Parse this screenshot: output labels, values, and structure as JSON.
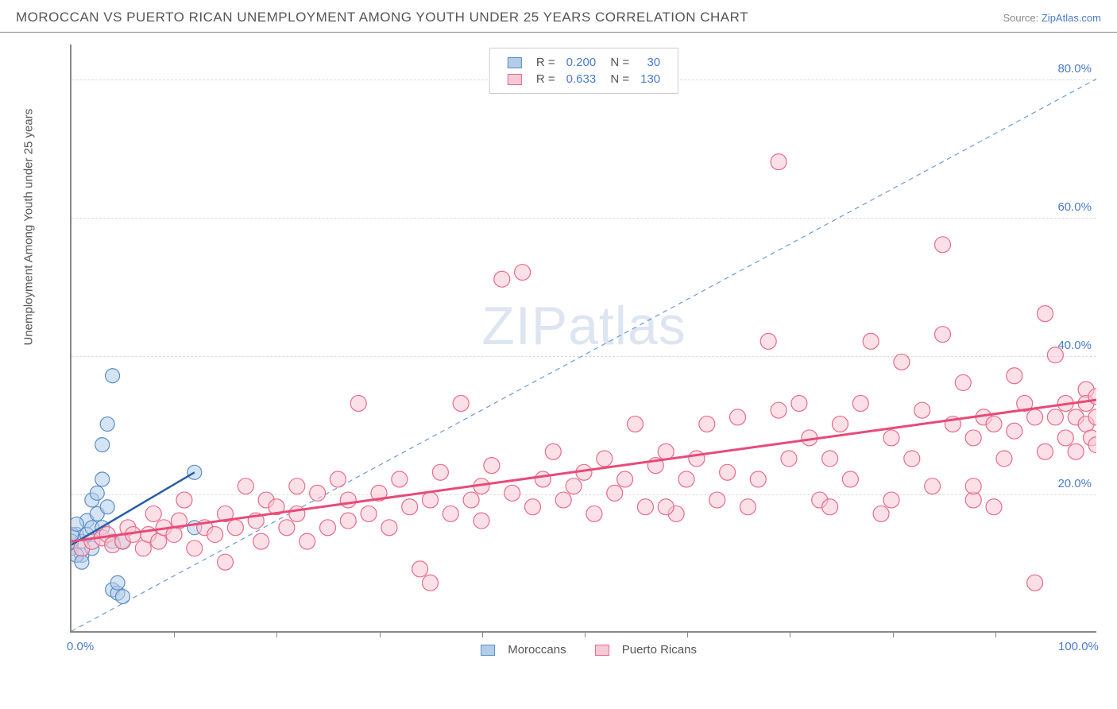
{
  "header": {
    "title": "MOROCCAN VS PUERTO RICAN UNEMPLOYMENT AMONG YOUTH UNDER 25 YEARS CORRELATION CHART",
    "source_prefix": "Source: ",
    "source_link": "ZipAtlas.com"
  },
  "ylabel": "Unemployment Among Youth under 25 years",
  "watermark": {
    "part1": "ZIP",
    "part2": "atlas"
  },
  "chart": {
    "type": "scatter",
    "xlim": [
      0,
      100
    ],
    "ylim": [
      0,
      85
    ],
    "x_axis_labels": [
      {
        "val": 0,
        "text": "0.0%"
      },
      {
        "val": 100,
        "text": "100.0%"
      }
    ],
    "y_axis_labels": [
      {
        "val": 20,
        "text": "20.0%"
      },
      {
        "val": 40,
        "text": "40.0%"
      },
      {
        "val": 60,
        "text": "60.0%"
      },
      {
        "val": 80,
        "text": "80.0%"
      }
    ],
    "x_ticks": [
      10,
      20,
      30,
      40,
      50,
      60,
      70,
      80,
      90
    ],
    "grid_color": "#dddddd",
    "axis_label_color": "#4a7bc8",
    "background_color": "#ffffff",
    "series": [
      {
        "name": "Moroccans",
        "marker_fill": "#b3cde8",
        "marker_stroke": "#5a8dc8",
        "marker_radius": 9,
        "trend": {
          "x1": 0,
          "y1": 12.5,
          "x2": 12,
          "y2": 23,
          "color": "#2a5ca8",
          "width": 2.5,
          "dash": "none"
        },
        "identity_line": {
          "x1": 0,
          "y1": 0,
          "x2": 100,
          "y2": 80,
          "color": "#6a9ad8",
          "width": 1.2,
          "dash": "6,5"
        },
        "legend_stats": {
          "R": "0.200",
          "N": "30"
        },
        "points": [
          [
            0,
            12
          ],
          [
            0.5,
            14
          ],
          [
            1,
            13
          ],
          [
            1,
            11
          ],
          [
            1.5,
            16
          ],
          [
            1.5,
            14
          ],
          [
            2,
            19
          ],
          [
            2,
            15
          ],
          [
            2,
            12
          ],
          [
            2.5,
            17
          ],
          [
            2.5,
            20
          ],
          [
            3,
            22
          ],
          [
            3,
            27
          ],
          [
            3,
            15
          ],
          [
            3.5,
            30
          ],
          [
            3.5,
            18
          ],
          [
            4,
            37
          ],
          [
            4,
            13
          ],
          [
            4,
            6
          ],
          [
            4.5,
            5.5
          ],
          [
            4.5,
            7
          ],
          [
            5,
            5
          ],
          [
            5,
            13
          ],
          [
            0.5,
            11
          ],
          [
            1,
            10
          ],
          [
            0,
            13
          ],
          [
            0,
            14
          ],
          [
            0.5,
            15.5
          ],
          [
            12,
            23
          ],
          [
            12,
            15
          ]
        ]
      },
      {
        "name": "Puerto Ricans",
        "marker_fill": "#f8c8d4",
        "marker_stroke": "#e86a8a",
        "marker_radius": 10,
        "trend": {
          "x1": 0,
          "y1": 13,
          "x2": 100,
          "y2": 33.5,
          "color": "#e84a78",
          "width": 3,
          "dash": "none"
        },
        "legend_stats": {
          "R": "0.633",
          "N": "130"
        },
        "points": [
          [
            1,
            12
          ],
          [
            2,
            13
          ],
          [
            3,
            13.5
          ],
          [
            3.5,
            14
          ],
          [
            4,
            12.5
          ],
          [
            5,
            13
          ],
          [
            5.5,
            15
          ],
          [
            6,
            14
          ],
          [
            7,
            12
          ],
          [
            7.5,
            14
          ],
          [
            8,
            17
          ],
          [
            8.5,
            13
          ],
          [
            9,
            15
          ],
          [
            10,
            14
          ],
          [
            10.5,
            16
          ],
          [
            11,
            19
          ],
          [
            12,
            12
          ],
          [
            13,
            15
          ],
          [
            14,
            14
          ],
          [
            15,
            17
          ],
          [
            15,
            10
          ],
          [
            16,
            15
          ],
          [
            17,
            21
          ],
          [
            18,
            16
          ],
          [
            18.5,
            13
          ],
          [
            19,
            19
          ],
          [
            20,
            18
          ],
          [
            21,
            15
          ],
          [
            22,
            17
          ],
          [
            22,
            21
          ],
          [
            23,
            13
          ],
          [
            24,
            20
          ],
          [
            25,
            15
          ],
          [
            26,
            22
          ],
          [
            27,
            16
          ],
          [
            27,
            19
          ],
          [
            28,
            33
          ],
          [
            29,
            17
          ],
          [
            30,
            20
          ],
          [
            31,
            15
          ],
          [
            32,
            22
          ],
          [
            33,
            18
          ],
          [
            34,
            9
          ],
          [
            35,
            19
          ],
          [
            35,
            7
          ],
          [
            36,
            23
          ],
          [
            37,
            17
          ],
          [
            38,
            33
          ],
          [
            39,
            19
          ],
          [
            40,
            16
          ],
          [
            41,
            24
          ],
          [
            42,
            51
          ],
          [
            43,
            20
          ],
          [
            44,
            52
          ],
          [
            45,
            18
          ],
          [
            46,
            22
          ],
          [
            47,
            26
          ],
          [
            48,
            19
          ],
          [
            49,
            21
          ],
          [
            50,
            23
          ],
          [
            51,
            17
          ],
          [
            52,
            25
          ],
          [
            53,
            20
          ],
          [
            54,
            22
          ],
          [
            55,
            30
          ],
          [
            56,
            18
          ],
          [
            57,
            24
          ],
          [
            58,
            26
          ],
          [
            59,
            17
          ],
          [
            60,
            22
          ],
          [
            61,
            25
          ],
          [
            62,
            30
          ],
          [
            63,
            19
          ],
          [
            64,
            23
          ],
          [
            65,
            31
          ],
          [
            66,
            18
          ],
          [
            67,
            22
          ],
          [
            68,
            42
          ],
          [
            69,
            68
          ],
          [
            70,
            25
          ],
          [
            71,
            33
          ],
          [
            72,
            28
          ],
          [
            73,
            19
          ],
          [
            74,
            18
          ],
          [
            74,
            25
          ],
          [
            75,
            30
          ],
          [
            76,
            22
          ],
          [
            77,
            33
          ],
          [
            78,
            42
          ],
          [
            79,
            17
          ],
          [
            80,
            28
          ],
          [
            81,
            39
          ],
          [
            82,
            25
          ],
          [
            83,
            32
          ],
          [
            84,
            21
          ],
          [
            85,
            43
          ],
          [
            85,
            56
          ],
          [
            86,
            30
          ],
          [
            87,
            36
          ],
          [
            88,
            19
          ],
          [
            88,
            28
          ],
          [
            89,
            31
          ],
          [
            90,
            18
          ],
          [
            91,
            25
          ],
          [
            92,
            37
          ],
          [
            92,
            29
          ],
          [
            93,
            33
          ],
          [
            94,
            7
          ],
          [
            94,
            31
          ],
          [
            95,
            46
          ],
          [
            95,
            26
          ],
          [
            96,
            31
          ],
          [
            96,
            40
          ],
          [
            97,
            28
          ],
          [
            97,
            33
          ],
          [
            98,
            31
          ],
          [
            98,
            26
          ],
          [
            99,
            35
          ],
          [
            99,
            30
          ],
          [
            99,
            33
          ],
          [
            99.5,
            28
          ],
          [
            100,
            31
          ],
          [
            100,
            34
          ],
          [
            100,
            27
          ],
          [
            88,
            21
          ],
          [
            90,
            30
          ],
          [
            80,
            19
          ],
          [
            69,
            32
          ],
          [
            40,
            21
          ],
          [
            58,
            18
          ]
        ]
      }
    ]
  },
  "legend_top_labels": {
    "R": "R =",
    "N": "N ="
  },
  "legend_bottom": [
    {
      "label": "Moroccans",
      "fill": "#b3cde8",
      "stroke": "#5a8dc8"
    },
    {
      "label": "Puerto Ricans",
      "fill": "#f8c8d4",
      "stroke": "#e86a8a"
    }
  ]
}
